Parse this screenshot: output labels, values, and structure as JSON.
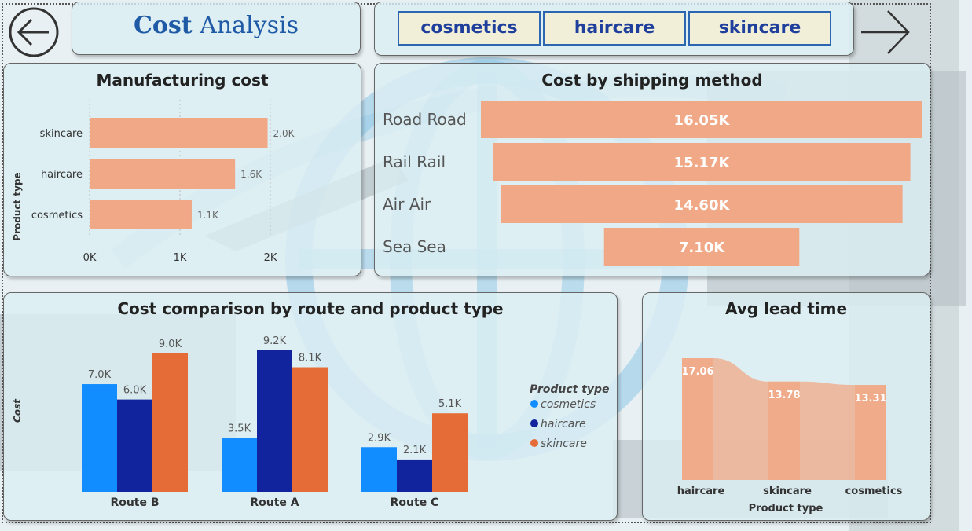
{
  "header": {
    "title_bold": "Cost",
    "title_rest": " Analysis",
    "slicers": [
      "cosmetics",
      "haircare",
      "skincare"
    ]
  },
  "colors": {
    "bar_salmon": "#f0a886",
    "cosmetics": "#118dff",
    "haircare": "#12239e",
    "skincare": "#e66c37"
  },
  "chart_data": [
    {
      "id": "manufacturing",
      "type": "bar",
      "orientation": "horizontal",
      "title": "Manufacturing cost",
      "ylabel": "Product type",
      "categories": [
        "skincare",
        "haircare",
        "cosmetics"
      ],
      "values": [
        1970,
        1610,
        1130
      ],
      "data_labels": [
        "2.0K",
        "1.6K",
        "1.1K"
      ],
      "xticks": [
        "0K",
        "1K",
        "2K"
      ],
      "xlim": [
        0,
        2000
      ]
    },
    {
      "id": "shipping",
      "type": "bar",
      "orientation": "funnel",
      "title": "Cost by shipping method",
      "categories": [
        "Road Road",
        "Rail Rail",
        "Air Air",
        "Sea Sea"
      ],
      "values": [
        16.05,
        15.17,
        14.6,
        7.1
      ],
      "data_labels": [
        "16.05K",
        "15.17K",
        "14.60K",
        "7.10K"
      ]
    },
    {
      "id": "route",
      "type": "bar",
      "title": "Cost comparison by route and product type",
      "ylabel": "Cost",
      "legend_title": "Product type",
      "legend_position": "right",
      "categories": [
        "Route B",
        "Route A",
        "Route C"
      ],
      "ylim": [
        0,
        9200
      ],
      "series": [
        {
          "name": "cosmetics",
          "values": [
            7000,
            3500,
            2900
          ],
          "labels": [
            "7.0K",
            "3.5K",
            "2.9K"
          ]
        },
        {
          "name": "haircare",
          "values": [
            6000,
            9200,
            2100
          ],
          "labels": [
            "6.0K",
            "9.2K",
            "2.1K"
          ]
        },
        {
          "name": "skincare",
          "values": [
            9000,
            8100,
            5100
          ],
          "labels": [
            "9.0K",
            "8.1K",
            "5.1K"
          ]
        }
      ]
    },
    {
      "id": "leadtime",
      "type": "area",
      "title": "Avg lead time",
      "xlabel": "Product type",
      "categories": [
        "haircare",
        "skincare",
        "cosmetics"
      ],
      "values": [
        17.06,
        13.78,
        13.31
      ],
      "data_labels": [
        "17.06",
        "13.78",
        "13.31"
      ]
    }
  ]
}
